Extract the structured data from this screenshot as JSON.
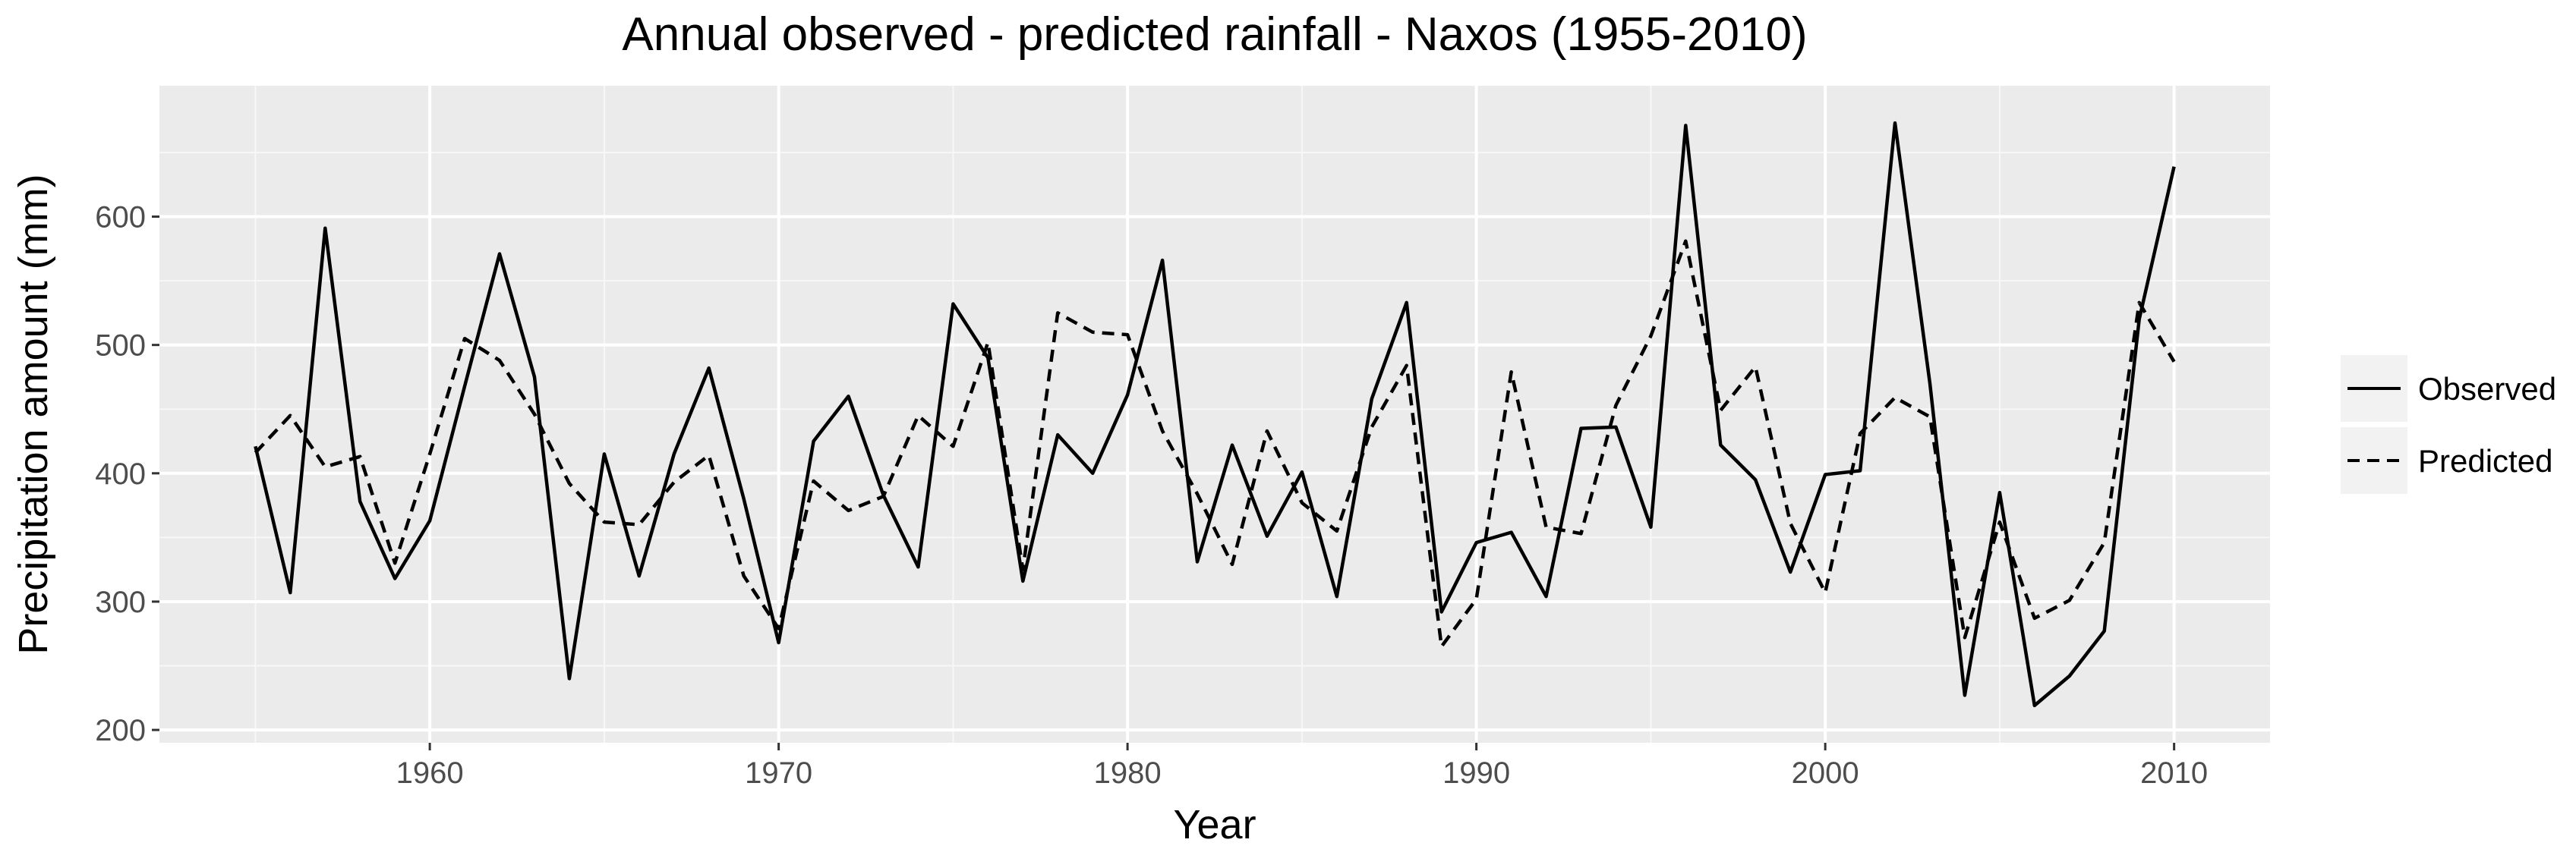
{
  "chart_data": {
    "type": "line",
    "title": "Annual observed - predicted rainfall - Naxos (1955-2010)",
    "xlabel": "Year",
    "ylabel": "Precipitation amount (mm)",
    "xlim": [
      1952.25,
      2012.75
    ],
    "ylim": [
      190,
      702
    ],
    "x_ticks": [
      1960,
      1970,
      1980,
      1990,
      2000,
      2010
    ],
    "x_tick_labels": [
      "1960",
      "1970",
      "1980",
      "1990",
      "2000",
      "2010"
    ],
    "y_ticks": [
      200,
      300,
      400,
      500,
      600
    ],
    "y_tick_labels": [
      "200",
      "300",
      "400",
      "500",
      "600"
    ],
    "grid": true,
    "legend_position": "right",
    "x": [
      1955,
      1956,
      1957,
      1958,
      1959,
      1960,
      1961,
      1962,
      1963,
      1964,
      1965,
      1966,
      1967,
      1968,
      1969,
      1970,
      1971,
      1972,
      1973,
      1974,
      1975,
      1976,
      1977,
      1978,
      1979,
      1980,
      1981,
      1982,
      1983,
      1984,
      1985,
      1986,
      1987,
      1988,
      1989,
      1990,
      1991,
      1992,
      1993,
      1994,
      1995,
      1996,
      1997,
      1998,
      1999,
      2000,
      2001,
      2002,
      2003,
      2004,
      2005,
      2006,
      2007,
      2008,
      2009,
      2010
    ],
    "series": [
      {
        "name": "Observed",
        "line_style": "solid",
        "values": [
          421,
          307,
          591,
          378,
          318,
          363,
          468,
          571,
          475,
          240,
          415,
          320,
          415,
          482,
          380,
          268,
          425,
          460,
          383,
          327,
          532,
          490,
          316,
          430,
          400,
          461,
          566,
          331,
          422,
          351,
          401,
          304,
          458,
          533,
          292,
          346,
          354,
          304,
          435,
          436,
          358,
          671,
          422,
          395,
          323,
          399,
          402,
          673,
          470,
          227,
          385,
          219,
          242,
          277,
          520,
          639
        ]
      },
      {
        "name": "Predicted",
        "line_style": "dashed",
        "values": [
          416,
          445,
          405,
          413,
          330,
          415,
          505,
          488,
          446,
          392,
          362,
          360,
          393,
          414,
          320,
          279,
          394,
          371,
          382,
          445,
          421,
          502,
          325,
          525,
          510,
          508,
          433,
          384,
          329,
          433,
          377,
          355,
          436,
          484,
          265,
          302,
          479,
          358,
          353,
          453,
          507,
          581,
          449,
          483,
          361,
          307,
          431,
          459,
          444,
          272,
          362,
          287,
          301,
          346,
          533,
          487
        ]
      }
    ]
  }
}
